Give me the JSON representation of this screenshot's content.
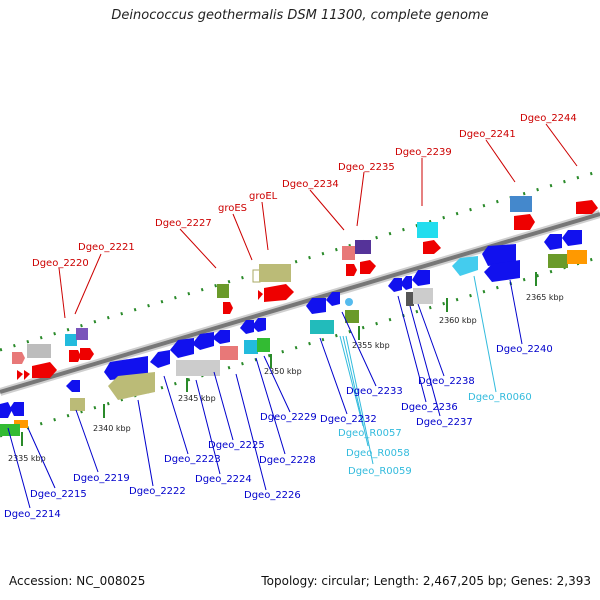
{
  "title": "Deinococcus geothermalis DSM 11300, complete genome",
  "accession": "Accession: NC_008025",
  "topology": "Topology: circular; Length: 2,467,205 bp; Genes: 2,393",
  "colors": {
    "top_label": "#cc0000",
    "bottom_label": "#0000cc",
    "rna_label": "#33bbdd",
    "backbone": "#8a8a8a",
    "tick": "#2a8a2a"
  },
  "ticks": [
    {
      "label": "2335 kbp"
    },
    {
      "label": "2340 kbp"
    },
    {
      "label": "2345 kbp"
    },
    {
      "label": "2350 kbp"
    },
    {
      "label": "2355 kbp"
    },
    {
      "label": "2360 kbp"
    },
    {
      "label": "2365 kbp"
    }
  ],
  "top_labels": [
    "Dgeo_2220",
    "Dgeo_2221",
    "Dgeo_2227",
    "groES",
    "groEL",
    "Dgeo_2234",
    "Dgeo_2235",
    "Dgeo_2239",
    "Dgeo_2241",
    "Dgeo_2244"
  ],
  "bottom_labels": [
    "Dgeo_2214",
    "Dgeo_2215",
    "Dgeo_2219",
    "Dgeo_2222",
    "Dgeo_2223",
    "Dgeo_2224",
    "Dgeo_2225",
    "Dgeo_2226",
    "Dgeo_2228",
    "Dgeo_2229",
    "Dgeo_2232",
    "Dgeo_R0057",
    "Dgeo_R0058",
    "Dgeo_R0059",
    "Dgeo_2233",
    "Dgeo_2236",
    "Dgeo_2237",
    "Dgeo_2238",
    "Dgeo_R0060",
    "Dgeo_2240"
  ],
  "bottom_rna_labels": [
    "Dgeo_R0057",
    "Dgeo_R0058",
    "Dgeo_R0059",
    "Dgeo_R0060"
  ]
}
